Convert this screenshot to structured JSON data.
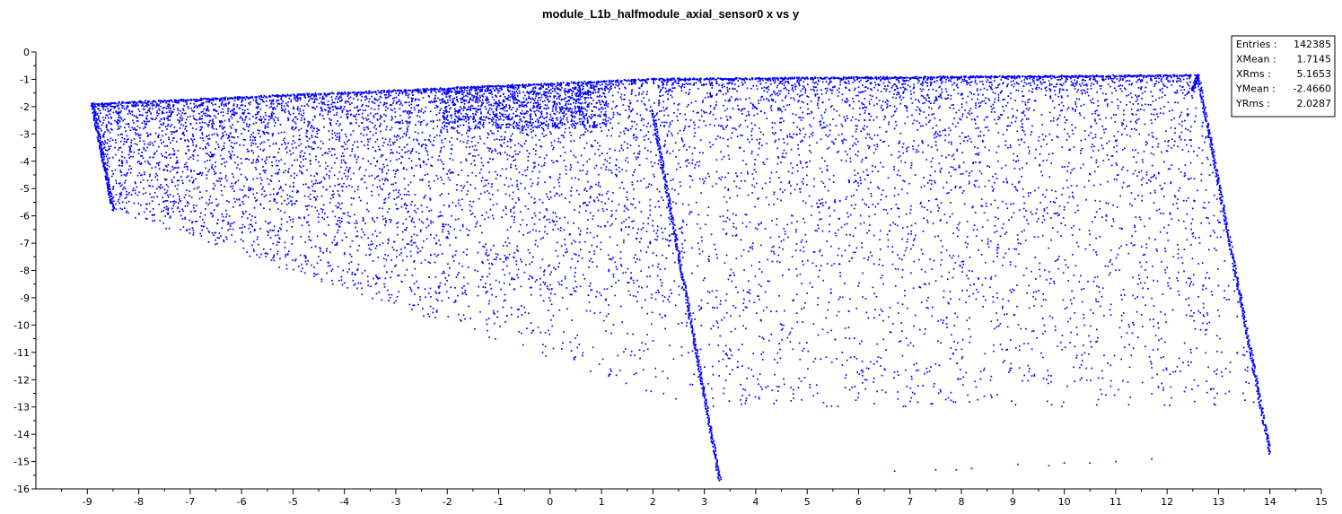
{
  "chart_data": {
    "type": "scatter",
    "title": "module_L1b_halfmodule_axial_sensor0 x vs y",
    "xlabel": "",
    "ylabel": "",
    "xlim": [
      -10,
      15
    ],
    "ylim": [
      -16,
      0
    ],
    "x_ticks": [
      -9,
      -8,
      -7,
      -6,
      -5,
      -4,
      -3,
      -2,
      -1,
      0,
      1,
      2,
      3,
      4,
      5,
      6,
      7,
      8,
      9,
      10,
      11,
      12,
      13,
      14,
      15
    ],
    "y_ticks": [
      0,
      -1,
      -2,
      -3,
      -4,
      -5,
      -6,
      -7,
      -8,
      -9,
      -10,
      -11,
      -12,
      -13,
      -14,
      -15,
      -16
    ],
    "marker_color": "#0000ff",
    "grid": false,
    "stats_box": {
      "placement": "top-right",
      "rows": [
        {
          "label": "Entries :",
          "value": "142385"
        },
        {
          "label": "XMean :",
          "value": "1.7145"
        },
        {
          "label": "XRms :",
          "value": "5.1653"
        },
        {
          "label": "YMean :",
          "value": "-2.4660"
        },
        {
          "label": "YRms :",
          "value": "2.0287"
        }
      ]
    },
    "regions": [
      {
        "name": "left",
        "top_edge": [
          [
            -8.9,
            -1.9
          ],
          [
            2.0,
            -1.0
          ]
        ],
        "left_edge": [
          [
            -8.9,
            -1.9
          ],
          [
            -8.5,
            -5.8
          ]
        ],
        "bottom_edge": [
          [
            -8.5,
            -5.8
          ],
          [
            -2.0,
            -10.0
          ],
          [
            2.5,
            -12.8
          ]
        ],
        "right_edge": [
          [
            2.0,
            -2.2
          ],
          [
            3.3,
            -15.7
          ]
        ]
      },
      {
        "name": "right",
        "top_edge": [
          [
            2.0,
            -1.0
          ],
          [
            12.6,
            -0.85
          ]
        ],
        "right_edge": [
          [
            12.6,
            -0.85
          ],
          [
            14.0,
            -14.7
          ]
        ],
        "bottom_points": [
          [
            6.7,
            -15.35
          ],
          [
            7.5,
            -15.3
          ],
          [
            7.9,
            -15.3
          ],
          [
            8.2,
            -15.25
          ],
          [
            9.1,
            -15.1
          ],
          [
            9.7,
            -15.15
          ],
          [
            10.0,
            -15.05
          ],
          [
            10.5,
            -15.05
          ],
          [
            11.0,
            -15.0
          ],
          [
            11.7,
            -14.9
          ]
        ]
      }
    ]
  }
}
